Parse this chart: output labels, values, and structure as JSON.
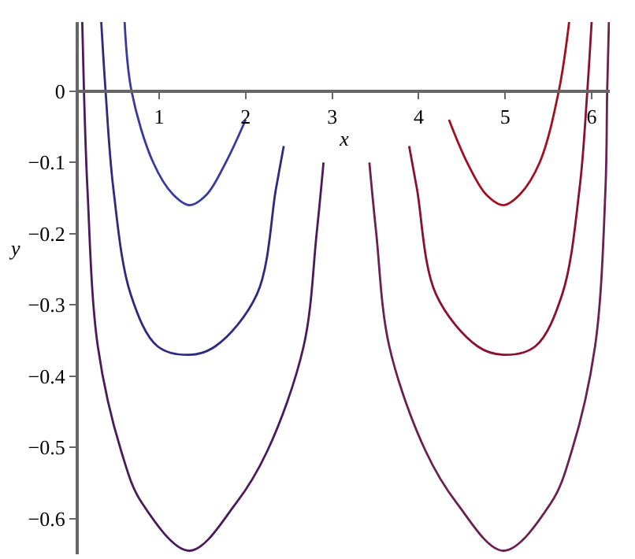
{
  "chart_data": {
    "type": "line",
    "xlabel": "x",
    "ylabel": "y",
    "xlim": [
      0.07,
      6.21
    ],
    "ylim": [
      -0.65,
      0.097
    ],
    "xticks": [
      1,
      2,
      3,
      4,
      5,
      6
    ],
    "yticks": [
      0,
      {
        "value": -0.1,
        "label": "−0.1"
      },
      {
        "value": -0.2,
        "label": "−0.2"
      },
      {
        "value": -0.3,
        "label": "−0.3"
      },
      {
        "value": -0.4,
        "label": "−0.4"
      },
      {
        "value": -0.5,
        "label": "−0.5"
      },
      {
        "value": -0.6,
        "label": "−0.6"
      }
    ],
    "legend": false,
    "marker": "none",
    "line_style": "solid",
    "series": [
      {
        "color": "#3a3a9e",
        "x": [
          0.6,
          0.68,
          0.93,
          1.16,
          1.35,
          1.55,
          1.77,
          2.0
        ],
        "values": [
          0.097,
          0,
          -0.1,
          -0.145,
          -0.16,
          -0.145,
          -0.1,
          -0.04
        ]
      },
      {
        "color": "#2e2a80",
        "x": [
          0.33,
          0.38,
          0.47,
          0.67,
          0.98,
          1.35,
          1.65,
          2.13,
          2.35,
          2.44
        ],
        "values": [
          0.097,
          0,
          -0.137,
          -0.285,
          -0.358,
          -0.37,
          -0.358,
          -0.285,
          -0.137,
          -0.077
        ]
      },
      {
        "color": "#4b1a5a",
        "x": [
          0.11,
          0.13,
          0.17,
          0.29,
          0.56,
          0.8,
          1.35,
          1.89,
          2.25,
          2.67,
          2.82,
          2.9
        ],
        "values": [
          0.097,
          0,
          -0.137,
          -0.358,
          -0.505,
          -0.578,
          -0.645,
          -0.578,
          -0.505,
          -0.358,
          -0.2,
          -0.1
        ]
      },
      {
        "color": "#a01020",
        "x": [
          4.35,
          4.56,
          4.78,
          4.98,
          5.17,
          5.4,
          5.62,
          5.74
        ],
        "values": [
          -0.04,
          -0.1,
          -0.145,
          -0.16,
          -0.145,
          -0.1,
          0,
          0.097
        ]
      },
      {
        "color": "#8a1030",
        "x": [
          3.89,
          3.98,
          4.2,
          4.68,
          4.98,
          5.35,
          5.66,
          5.86,
          5.95,
          6.0
        ],
        "values": [
          -0.077,
          -0.137,
          -0.285,
          -0.358,
          -0.37,
          -0.358,
          -0.285,
          -0.137,
          0,
          0.097
        ]
      },
      {
        "color": "#6a2050",
        "x": [
          3.43,
          3.51,
          3.66,
          4.08,
          4.44,
          4.98,
          5.53,
          5.77,
          6.04,
          6.16,
          6.18,
          6.2
        ],
        "values": [
          -0.1,
          -0.2,
          -0.358,
          -0.505,
          -0.578,
          -0.645,
          -0.578,
          -0.505,
          -0.358,
          -0.137,
          0,
          0.097
        ]
      }
    ]
  }
}
